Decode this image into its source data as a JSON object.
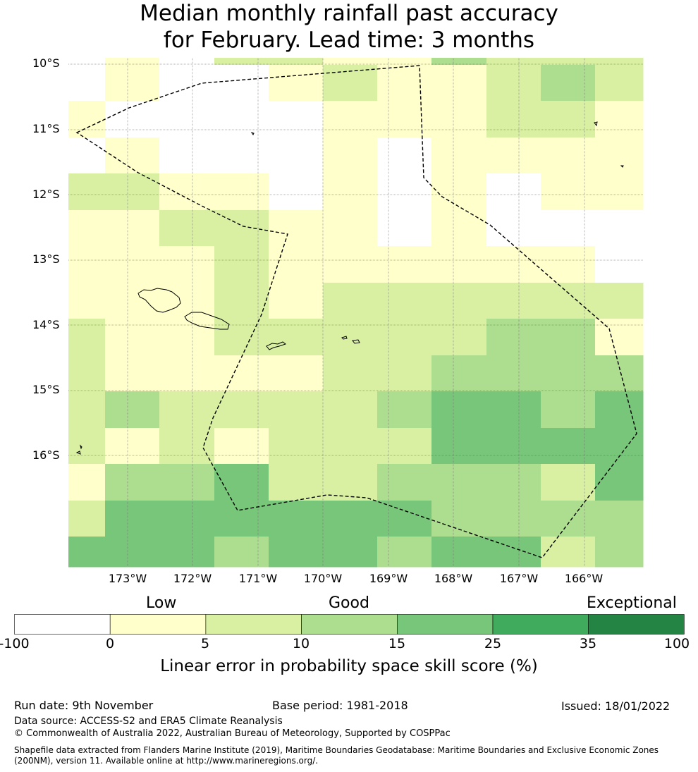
{
  "title_line1": "Median monthly rainfall past accuracy",
  "title_line2": "for February. Lead time: 3 months",
  "map": {
    "lat_labels": [
      "10°S",
      "11°S",
      "12°S",
      "13°S",
      "14°S",
      "15°S",
      "16°S"
    ],
    "lon_labels": [
      "173°W",
      "172°W",
      "171°W",
      "170°W",
      "169°W",
      "168°W",
      "167°W",
      "166°W"
    ],
    "grid_skill_pct": [
      [
        -1,
        3,
        -1,
        7,
        7,
        3,
        3,
        12,
        7,
        7,
        7
      ],
      [
        -1,
        3,
        -1,
        -1,
        3,
        7,
        3,
        3,
        7,
        12,
        7
      ],
      [
        3,
        -1,
        -1,
        -1,
        -1,
        3,
        3,
        3,
        7,
        7,
        3
      ],
      [
        -1,
        3,
        -1,
        -1,
        -1,
        3,
        -1,
        3,
        3,
        3,
        3
      ],
      [
        7,
        7,
        3,
        3,
        -1,
        3,
        -1,
        3,
        -1,
        3,
        3
      ],
      [
        3,
        3,
        7,
        7,
        3,
        3,
        -1,
        3,
        -1,
        -1,
        -1
      ],
      [
        3,
        3,
        3,
        7,
        3,
        3,
        3,
        3,
        3,
        3,
        -1
      ],
      [
        3,
        3,
        3,
        7,
        3,
        7,
        7,
        7,
        7,
        7,
        7
      ],
      [
        7,
        3,
        3,
        7,
        7,
        7,
        7,
        7,
        12,
        12,
        3
      ],
      [
        7,
        3,
        3,
        3,
        3,
        7,
        7,
        12,
        12,
        12,
        12
      ],
      [
        7,
        12,
        7,
        7,
        7,
        7,
        12,
        20,
        20,
        12,
        20
      ],
      [
        7,
        3,
        7,
        3,
        7,
        7,
        7,
        20,
        20,
        20,
        20
      ],
      [
        3,
        12,
        12,
        20,
        7,
        7,
        12,
        12,
        12,
        7,
        20
      ],
      [
        7,
        20,
        20,
        20,
        20,
        20,
        20,
        12,
        12,
        12,
        12
      ],
      [
        20,
        20,
        20,
        12,
        20,
        20,
        12,
        20,
        20,
        7,
        12
      ]
    ]
  },
  "colorbar": {
    "category_low": "Low",
    "category_good": "Good",
    "category_exceptional": "Exceptional",
    "ticks": [
      "-100",
      "0",
      "5",
      "10",
      "15",
      "25",
      "35",
      "100"
    ],
    "colors": [
      "#ffffff",
      "#ffffcc",
      "#d9f0a3",
      "#addd8e",
      "#78c679",
      "#41ab5d",
      "#238443"
    ],
    "label": "Linear error in probability space skill score (%)"
  },
  "footer": {
    "run_date": "Run date: 9th November",
    "base_period": "Base period: 1981-2018",
    "issued": "Issued: 18/01/2022",
    "data_source": "Data source: ACCESS-S2 and ERA5 Climate Reanalysis",
    "copyright": "© Commonwealth of Australia 2022, Australian Bureau of Meteorology, Supported by COSPPac",
    "shapefile": "Shapefile data extracted from Flanders Marine Institute (2019), Maritime Boundaries Geodatabase: Maritime Boundaries and Exclusive Economic Zones (200NM), version 11. Available online at http://www.marineregions.org/."
  }
}
